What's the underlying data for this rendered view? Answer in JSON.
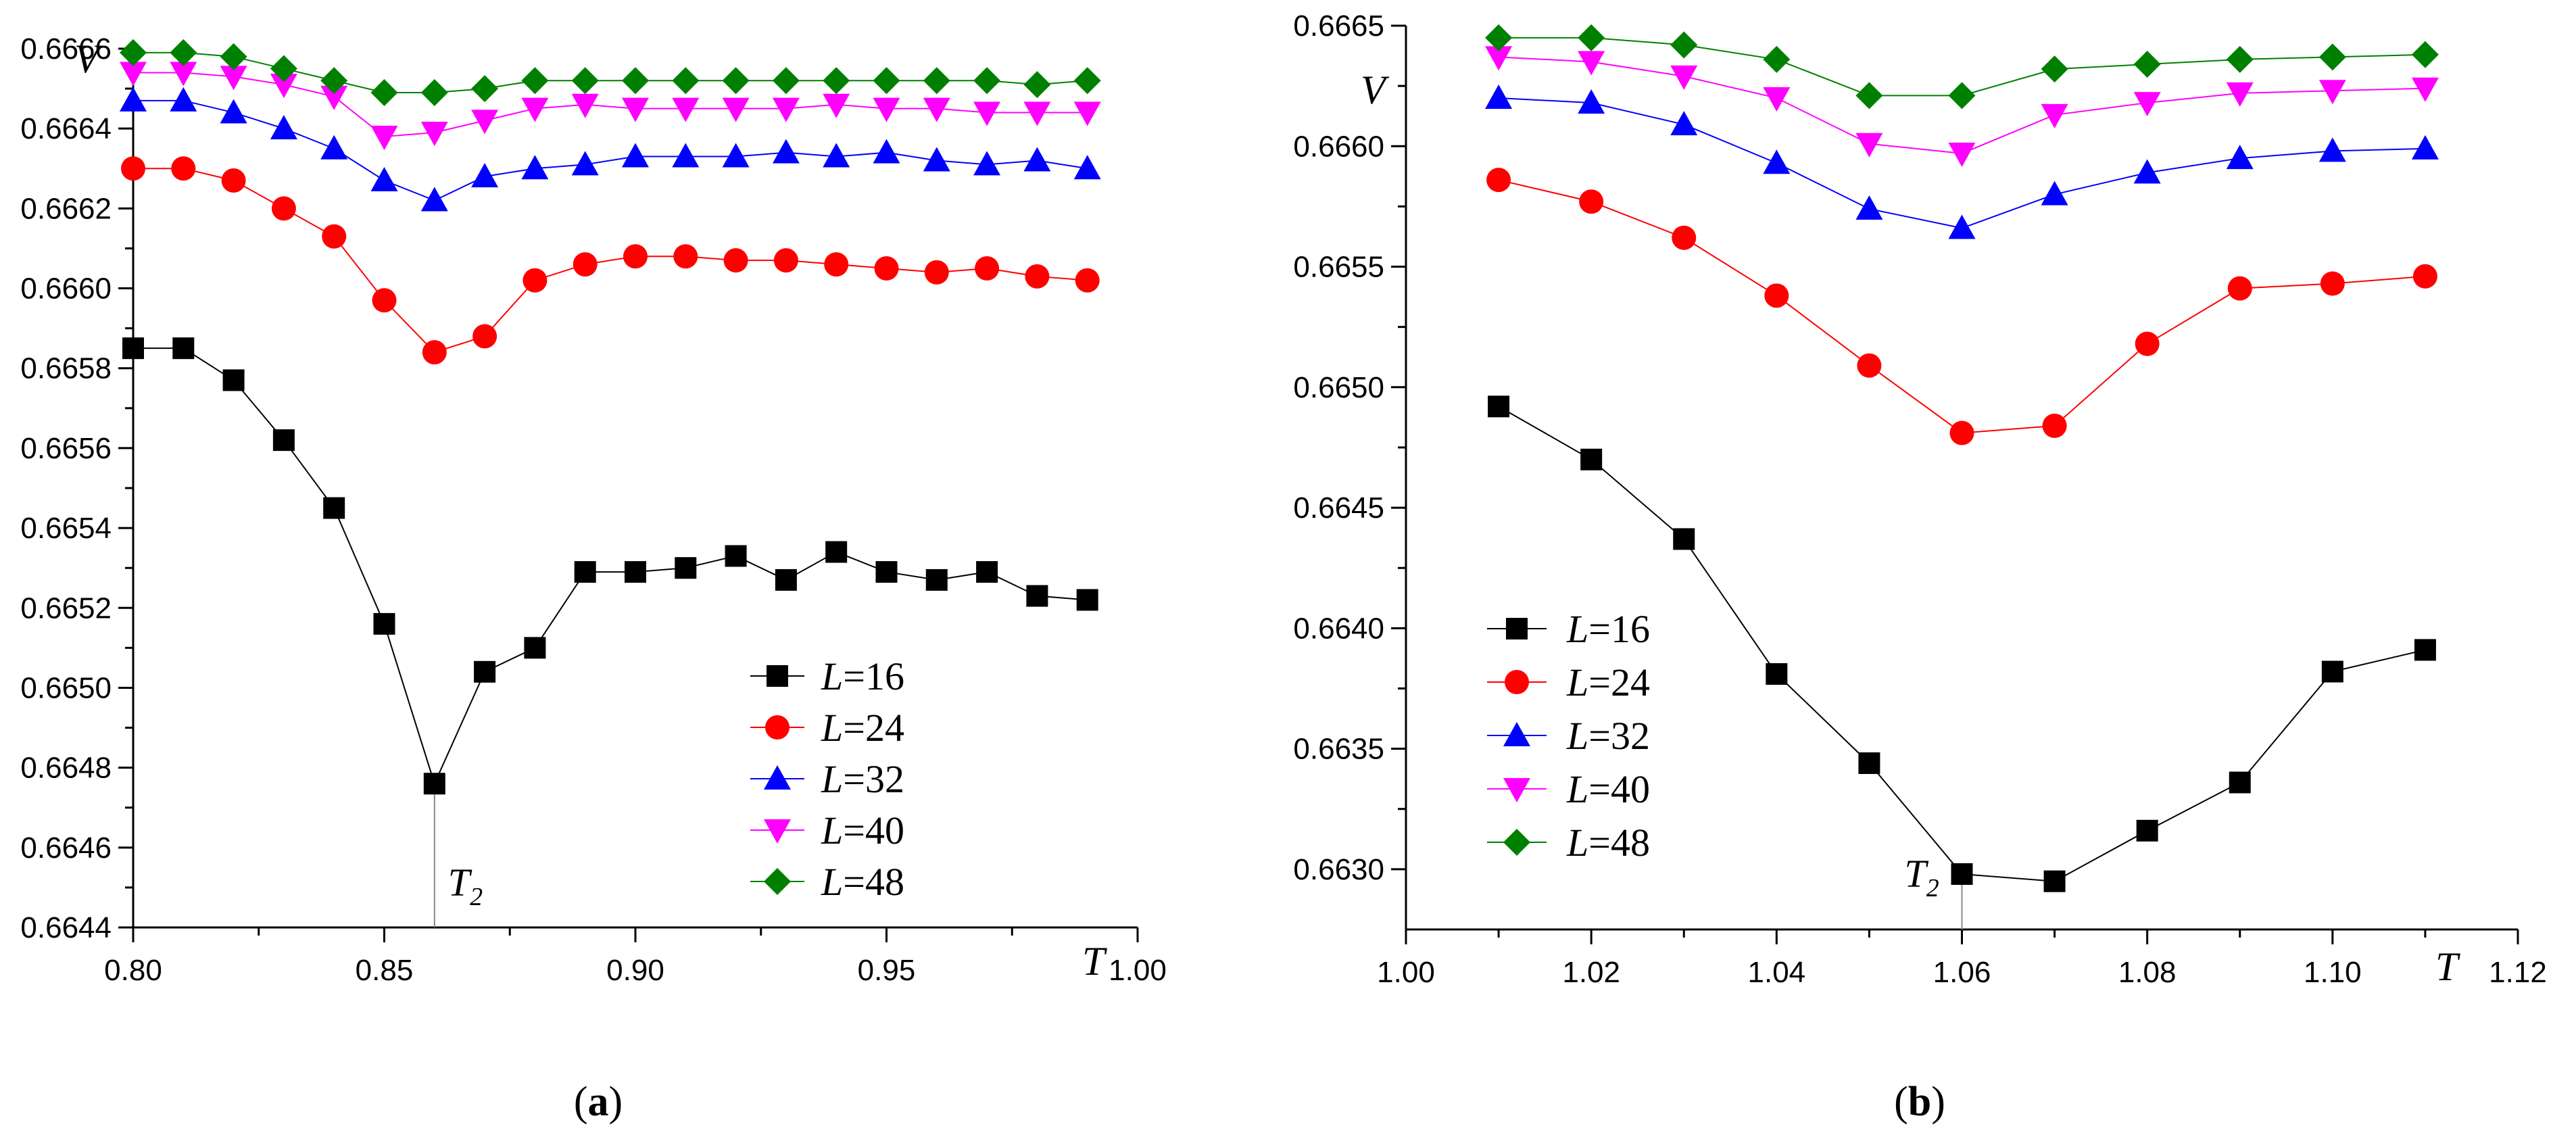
{
  "chart_data": [
    {
      "type": "line",
      "panel_label": "a",
      "xlabel": "T",
      "ylabel": "V",
      "xlim": [
        0.8,
        1.0
      ],
      "ylim": [
        0.6644,
        0.6666
      ],
      "x_ticks": [
        "0.80",
        "0.85",
        "0.90",
        "0.95",
        "1.00"
      ],
      "y_ticks": [
        "0.6644",
        "0.6646",
        "0.6648",
        "0.6650",
        "0.6652",
        "0.6654",
        "0.6656",
        "0.6658",
        "0.6660",
        "0.6662",
        "0.6664",
        "0.6666"
      ],
      "legend_position": "bottom-right",
      "annotation": {
        "text": "T",
        "subscript": "2",
        "x": 0.86
      },
      "x": [
        0.8,
        0.81,
        0.82,
        0.83,
        0.84,
        0.85,
        0.86,
        0.87,
        0.88,
        0.89,
        0.9,
        0.91,
        0.92,
        0.93,
        0.94,
        0.95,
        0.96,
        0.97,
        0.98,
        0.99
      ],
      "series": [
        {
          "name": "16",
          "color": "#000000",
          "marker": "square",
          "values": [
            0.66585,
            0.66585,
            0.66577,
            0.66562,
            0.66545,
            0.66516,
            0.66476,
            0.66504,
            0.6651,
            0.66529,
            0.66529,
            0.6653,
            0.66533,
            0.66527,
            0.66534,
            0.66529,
            0.66527,
            0.66529,
            0.66523,
            0.66522
          ]
        },
        {
          "name": "24",
          "color": "#ff0000",
          "marker": "circle",
          "values": [
            0.6663,
            0.6663,
            0.66627,
            0.6662,
            0.66613,
            0.66597,
            0.66584,
            0.66588,
            0.66602,
            0.66606,
            0.66608,
            0.66608,
            0.66607,
            0.66607,
            0.66606,
            0.66605,
            0.66604,
            0.66605,
            0.66603,
            0.66602
          ]
        },
        {
          "name": "32",
          "color": "#0000ff",
          "marker": "triangle-up",
          "values": [
            0.66647,
            0.66647,
            0.66644,
            0.6664,
            0.66635,
            0.66627,
            0.66622,
            0.66628,
            0.6663,
            0.66631,
            0.66633,
            0.66633,
            0.66633,
            0.66634,
            0.66633,
            0.66634,
            0.66632,
            0.66631,
            0.66632,
            0.6663
          ]
        },
        {
          "name": "40",
          "color": "#ff00ff",
          "marker": "triangle-down",
          "values": [
            0.66654,
            0.66654,
            0.66653,
            0.66651,
            0.66648,
            0.66638,
            0.66639,
            0.66642,
            0.66645,
            0.66646,
            0.66645,
            0.66645,
            0.66645,
            0.66645,
            0.66646,
            0.66645,
            0.66645,
            0.66644,
            0.66644,
            0.66644
          ]
        },
        {
          "name": "48",
          "color": "#008000",
          "marker": "diamond",
          "values": [
            0.66659,
            0.66659,
            0.66658,
            0.66655,
            0.66652,
            0.66649,
            0.66649,
            0.6665,
            0.66652,
            0.66652,
            0.66652,
            0.66652,
            0.66652,
            0.66652,
            0.66652,
            0.66652,
            0.66652,
            0.66652,
            0.66651,
            0.66652
          ]
        }
      ]
    },
    {
      "type": "line",
      "panel_label": "b",
      "xlabel": "T",
      "ylabel": "V",
      "xlim": [
        1.0,
        1.12
      ],
      "ylim": [
        0.66275,
        0.6665
      ],
      "x_ticks": [
        "1.00",
        "1.02",
        "1.04",
        "1.06",
        "1.08",
        "1.10",
        "1.12"
      ],
      "y_ticks": [
        "0.6630",
        "0.6635",
        "0.6640",
        "0.6645",
        "0.6650",
        "0.6655",
        "0.6660",
        "0.6665"
      ],
      "legend_position": "bottom-left",
      "annotation": {
        "text": "T",
        "subscript": "2",
        "x": 1.06
      },
      "x": [
        1.01,
        1.02,
        1.03,
        1.04,
        1.05,
        1.06,
        1.07,
        1.08,
        1.09,
        1.1,
        1.11
      ],
      "series": [
        {
          "name": "16",
          "color": "#000000",
          "marker": "square",
          "values": [
            0.66492,
            0.6647,
            0.66437,
            0.66381,
            0.66344,
            0.66298,
            0.66295,
            0.66316,
            0.66336,
            0.66382,
            0.66391
          ]
        },
        {
          "name": "24",
          "color": "#ff0000",
          "marker": "circle",
          "values": [
            0.66586,
            0.66577,
            0.66562,
            0.66538,
            0.66509,
            0.66481,
            0.66484,
            0.66518,
            0.66541,
            0.66543,
            0.66546
          ]
        },
        {
          "name": "32",
          "color": "#0000ff",
          "marker": "triangle-up",
          "values": [
            0.6662,
            0.66618,
            0.66609,
            0.66593,
            0.66574,
            0.66566,
            0.6658,
            0.66589,
            0.66595,
            0.66598,
            0.66599
          ]
        },
        {
          "name": "40",
          "color": "#ff00ff",
          "marker": "triangle-down",
          "values": [
            0.66637,
            0.66635,
            0.66629,
            0.6662,
            0.66601,
            0.66597,
            0.66613,
            0.66618,
            0.66622,
            0.66623,
            0.66624
          ]
        },
        {
          "name": "48",
          "color": "#008000",
          "marker": "diamond",
          "values": [
            0.66645,
            0.66645,
            0.66642,
            0.66636,
            0.66621,
            0.66621,
            0.66632,
            0.66634,
            0.66636,
            0.66637,
            0.66638
          ]
        }
      ]
    }
  ],
  "legend_prefix": "L",
  "legend_equals": "=",
  "captions": {
    "a": {
      "open": "(",
      "label": "a",
      "close": ")"
    },
    "b": {
      "open": "(",
      "label": "b",
      "close": ")"
    }
  }
}
